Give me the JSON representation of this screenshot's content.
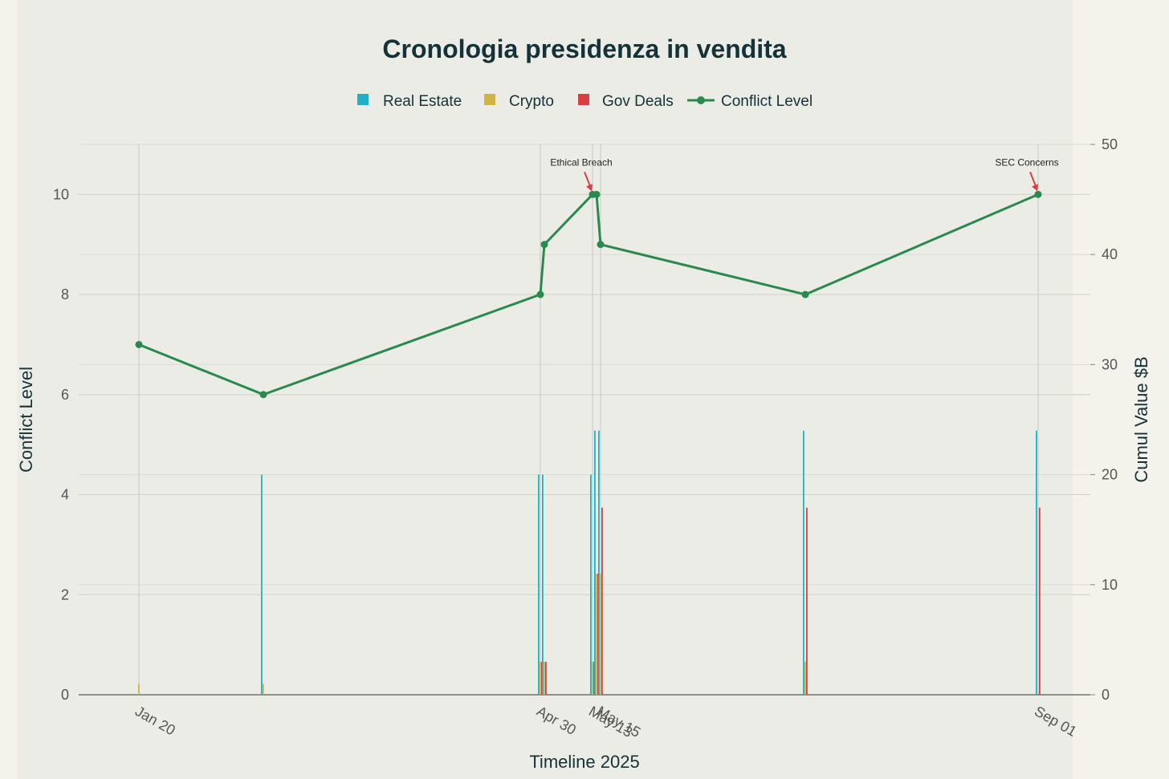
{
  "chart_data": {
    "type": "bar",
    "title": "Cronologia presidenza in vendita",
    "xlabel": "Timeline 2025",
    "ylabel": "Conflict Level",
    "y2label": "Cumul Value $B",
    "ylim": [
      0,
      11
    ],
    "y2lim": [
      0,
      50
    ],
    "yticks": [
      0,
      2,
      4,
      6,
      8,
      10
    ],
    "y2ticks": [
      0,
      10,
      20,
      30,
      40,
      50
    ],
    "grid": true,
    "legend_position": "top-center",
    "x_ticks": [
      "Jan 20",
      "Apr 30",
      "May 13",
      "May 15",
      "Sep 01"
    ],
    "x_tick_dates": [
      "2025-01-20",
      "2025-04-30",
      "2025-05-13",
      "2025-05-15",
      "2025-09-01"
    ],
    "x": [
      "2025-01-20",
      "2025-02-20",
      "2025-04-30",
      "2025-05-01",
      "2025-05-13",
      "2025-05-14",
      "2025-05-15",
      "2025-07-05",
      "2025-09-01"
    ],
    "series": [
      {
        "name": "Real Estate",
        "type": "bar",
        "axis": "y2",
        "color": "#1fb2c7",
        "values": [
          0,
          20,
          20,
          20,
          20,
          24,
          24,
          24,
          24
        ]
      },
      {
        "name": "Crypto",
        "type": "bar",
        "axis": "y2",
        "color": "#d0b447",
        "values": [
          1,
          1,
          3,
          3,
          3,
          11,
          11,
          3,
          0
        ]
      },
      {
        "name": "Gov Deals",
        "type": "bar",
        "axis": "y2",
        "color": "#d64045",
        "values": [
          0,
          0,
          3,
          3,
          3,
          11,
          17,
          17,
          17
        ]
      },
      {
        "name": "Conflict Level",
        "type": "line",
        "axis": "y",
        "color": "#2a8a4e",
        "values": [
          7,
          6,
          8,
          9,
          10,
          10,
          9,
          8,
          10
        ]
      }
    ],
    "annotations": [
      {
        "text": "Ethical Breach",
        "x": "2025-05-13",
        "y": 10
      },
      {
        "text": "SEC Concerns",
        "x": "2025-09-01",
        "y": 10
      }
    ]
  }
}
